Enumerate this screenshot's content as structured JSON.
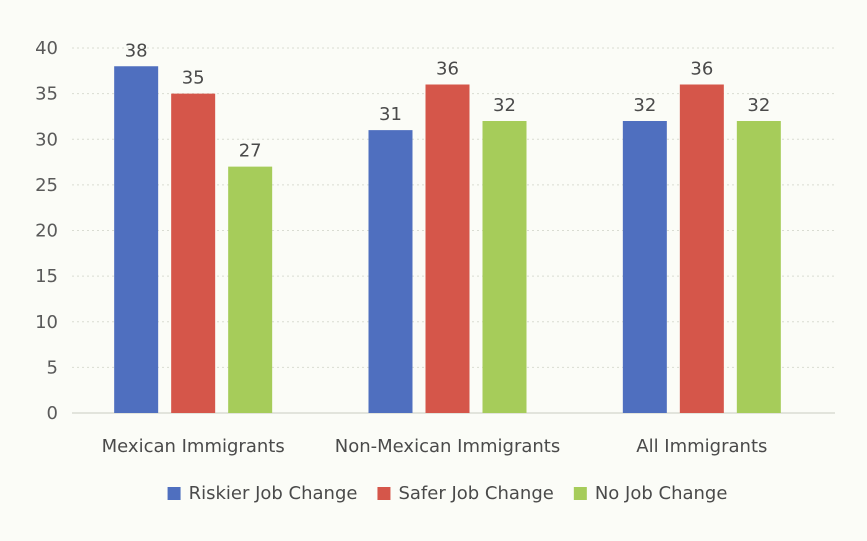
{
  "chart_data": {
    "type": "bar",
    "categories": [
      "Mexican Immigrants",
      "Non-Mexican Immigrants",
      "All Immigrants"
    ],
    "series": [
      {
        "name": "Riskier Job Change",
        "values": [
          38,
          31,
          32
        ],
        "color": "#4f6fbf"
      },
      {
        "name": "Safer Job Change",
        "values": [
          35,
          36,
          36
        ],
        "color": "#d5564a"
      },
      {
        "name": "No Job Change",
        "values": [
          27,
          32,
          32
        ],
        "color": "#a6cc5a"
      }
    ],
    "ylim": [
      0,
      40
    ],
    "yticks": [
      0,
      5,
      10,
      15,
      20,
      25,
      30,
      35,
      40
    ],
    "grid": true,
    "legend_position": "bottom",
    "data_labels": true
  }
}
